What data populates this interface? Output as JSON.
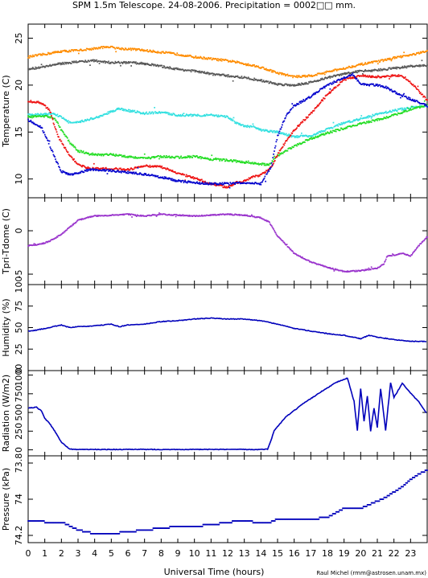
{
  "title": "SPM 1.5m Telescope. 24-08-2006. Precipitation = 0002□□ mm.",
  "credit": "Raul Michel  (rmm@astrosen.unam.mx)",
  "xlabel": "Universal Time (hours)",
  "x_ticks": [
    "0",
    "1",
    "2",
    "3",
    "4",
    "5",
    "6",
    "7",
    "8",
    "9",
    "10",
    "11",
    "12",
    "13",
    "14",
    "15",
    "16",
    "17",
    "18",
    "19",
    "20",
    "21",
    "22",
    "23"
  ],
  "colors": {
    "orange": "#ff8c00",
    "gray": "#555555",
    "cyan": "#33e0e0",
    "green": "#22dd22",
    "red": "#ee1111",
    "blue": "#0000cc",
    "purple": "#9933cc",
    "navy": "#0000bb"
  },
  "chart_data": [
    {
      "type": "scatter",
      "ylabel": "Temperature (C)",
      "ylim": [
        8,
        26.5
      ],
      "xlim": [
        0,
        24
      ],
      "yticks": [
        10,
        15,
        20,
        25
      ],
      "series": [
        {
          "color_key": "orange",
          "x": [
            0,
            1,
            2,
            3,
            4,
            4.8,
            5.5,
            6.5,
            8,
            9,
            10,
            11,
            12,
            13,
            14,
            15,
            16,
            17,
            18,
            19,
            20,
            21,
            22,
            23,
            24
          ],
          "y": [
            23.0,
            23.3,
            23.6,
            23.7,
            23.9,
            24.1,
            23.9,
            23.8,
            23.5,
            23.3,
            23.0,
            22.8,
            22.6,
            22.3,
            21.9,
            21.3,
            20.9,
            21.0,
            21.4,
            21.8,
            22.2,
            22.5,
            22.9,
            23.2,
            23.6
          ]
        },
        {
          "color_key": "gray",
          "x": [
            0,
            1,
            2,
            3,
            4,
            5,
            6,
            7,
            8,
            9,
            10,
            11,
            12,
            13,
            14,
            15,
            16,
            17,
            18,
            19,
            20,
            21,
            22,
            23,
            24
          ],
          "y": [
            21.7,
            22.0,
            22.3,
            22.5,
            22.6,
            22.4,
            22.4,
            22.3,
            22.0,
            21.7,
            21.5,
            21.2,
            21.0,
            20.8,
            20.5,
            20.1,
            20.0,
            20.3,
            20.8,
            21.2,
            21.5,
            21.6,
            21.8,
            22.0,
            22.1
          ]
        },
        {
          "color_key": "cyan",
          "x": [
            0,
            1,
            1.5,
            2,
            2.5,
            3,
            3.5,
            4,
            4.5,
            5,
            5.5,
            6,
            7,
            8,
            9,
            10,
            11,
            12,
            12.5,
            13,
            13.5,
            14,
            15,
            16,
            17,
            18,
            19,
            20,
            21,
            22,
            23,
            24
          ],
          "y": [
            16.8,
            16.9,
            17.0,
            16.6,
            16.0,
            16.0,
            16.3,
            16.5,
            16.8,
            17.2,
            17.5,
            17.3,
            17.0,
            17.1,
            16.8,
            16.8,
            16.8,
            16.6,
            16.0,
            15.6,
            15.6,
            15.2,
            15.0,
            14.5,
            14.6,
            15.3,
            16.0,
            16.4,
            16.9,
            17.3,
            17.6,
            17.8
          ]
        },
        {
          "color_key": "green",
          "x": [
            0,
            1,
            1.6,
            2,
            2.5,
            3,
            4,
            5,
            6,
            7,
            8,
            9,
            10,
            11,
            12,
            13,
            14,
            14.5,
            15,
            16,
            17,
            18,
            19,
            20,
            21,
            22,
            23,
            24
          ],
          "y": [
            16.6,
            16.7,
            16.5,
            15.2,
            13.9,
            13.0,
            12.6,
            12.6,
            12.4,
            12.2,
            12.4,
            12.3,
            12.4,
            12.1,
            12.0,
            11.8,
            11.6,
            11.5,
            12.5,
            13.5,
            14.3,
            14.9,
            15.4,
            15.9,
            16.3,
            16.8,
            17.4,
            17.9
          ]
        },
        {
          "color_key": "red",
          "x": [
            0,
            0.8,
            1.3,
            1.8,
            2.5,
            3,
            3.5,
            4,
            5,
            6,
            7,
            8,
            9,
            10,
            11,
            12,
            12.5,
            13,
            13.5,
            14,
            14.6,
            15,
            15.5,
            16,
            17,
            18,
            19,
            20,
            21,
            21.5,
            22,
            22.5,
            23,
            24
          ],
          "y": [
            18.3,
            18.1,
            17.3,
            14.5,
            12.5,
            11.6,
            11.2,
            11.1,
            11.1,
            11.0,
            11.4,
            11.3,
            10.6,
            10.1,
            9.5,
            9.1,
            9.6,
            9.8,
            10.2,
            10.4,
            11.2,
            12.6,
            14.0,
            15.2,
            17.0,
            19.0,
            20.6,
            21.0,
            20.9,
            20.9,
            21.0,
            21.0,
            20.3,
            18.4
          ]
        },
        {
          "color_key": "blue",
          "x": [
            0,
            0.8,
            1.2,
            1.6,
            2,
            2.5,
            3,
            3.5,
            4,
            5,
            6,
            7,
            8,
            9,
            10,
            11,
            12,
            13,
            14,
            14.6,
            15,
            15.5,
            16,
            17,
            18,
            19,
            19.5,
            20,
            21,
            21.5,
            22,
            23,
            24
          ],
          "y": [
            16.3,
            15.5,
            14.0,
            12.3,
            10.8,
            10.5,
            10.6,
            10.9,
            11.0,
            10.9,
            10.7,
            10.5,
            10.2,
            9.8,
            9.6,
            9.5,
            9.5,
            9.6,
            9.5,
            11.3,
            14.6,
            16.7,
            17.8,
            18.8,
            20.0,
            20.8,
            21.2,
            20.1,
            20.0,
            19.8,
            19.3,
            18.5,
            17.8
          ]
        }
      ]
    },
    {
      "type": "scatter",
      "ylabel": "Tpri-Tdome (C)",
      "ylim": [
        -6.2,
        3.8
      ],
      "xlim": [
        0,
        24
      ],
      "yticks": [
        -5,
        0
      ],
      "series": [
        {
          "color_key": "purple",
          "x": [
            0,
            0.5,
            1,
            1.5,
            2,
            2.5,
            3,
            3.5,
            4,
            5,
            6,
            7,
            8,
            9,
            10,
            11,
            12,
            13,
            14,
            14.5,
            15,
            15.5,
            16,
            17,
            18,
            19,
            20,
            21,
            21.4,
            21.6,
            22,
            22.5,
            23,
            23.5,
            24
          ],
          "y": [
            -1.7,
            -1.6,
            -1.4,
            -1.0,
            -0.4,
            0.4,
            1.2,
            1.5,
            1.7,
            1.8,
            1.9,
            1.7,
            1.9,
            1.8,
            1.7,
            1.8,
            1.9,
            1.8,
            1.5,
            1.0,
            -0.6,
            -1.6,
            -2.6,
            -3.6,
            -4.2,
            -4.7,
            -4.6,
            -4.3,
            -3.8,
            -2.9,
            -2.8,
            -2.6,
            -2.9,
            -1.7,
            -0.7
          ]
        }
      ]
    },
    {
      "type": "line",
      "ylabel": "Humidity (%)",
      "ylim": [
        0,
        100
      ],
      "xlim": [
        0,
        24
      ],
      "yticks": [
        0,
        25,
        50,
        75,
        100
      ],
      "series": [
        {
          "color_key": "navy",
          "x": [
            0,
            0.5,
            1,
            1.5,
            2,
            2.5,
            3,
            4,
            5,
            5.5,
            6,
            7,
            8,
            9,
            10,
            11,
            12,
            13,
            14,
            15,
            16,
            17,
            18,
            19,
            19.5,
            20,
            20.5,
            21,
            22,
            23,
            24
          ],
          "y": [
            46,
            47,
            49,
            51,
            53,
            50,
            51,
            52,
            54,
            51,
            53,
            54,
            57,
            58,
            60,
            61,
            60,
            60,
            58,
            54,
            49,
            46,
            43,
            41,
            39,
            37,
            41,
            39,
            36,
            34,
            34
          ]
        }
      ]
    },
    {
      "type": "line",
      "ylabel": "Radiation (W/m2)",
      "ylim": [
        -80,
        1060
      ],
      "xlim": [
        0,
        24
      ],
      "yticks": [
        0,
        250,
        500,
        750,
        1000
      ],
      "series": [
        {
          "color_key": "navy",
          "x": [
            0,
            0.5,
            0.8,
            1,
            1.3,
            1.6,
            2,
            2.5,
            3,
            5,
            8,
            11,
            13,
            14,
            14.4,
            14.6,
            14.8,
            15.5,
            16.5,
            17.5,
            18.5,
            19.2,
            19.6,
            19.8,
            20,
            20.2,
            20.4,
            20.6,
            20.8,
            21,
            21.2,
            21.5,
            21.8,
            22,
            22.5,
            23,
            23.5,
            24
          ],
          "y": [
            560,
            570,
            520,
            420,
            350,
            250,
            100,
            10,
            5,
            5,
            5,
            5,
            5,
            5,
            10,
            120,
            260,
            440,
            610,
            760,
            900,
            960,
            650,
            260,
            820,
            380,
            720,
            250,
            560,
            300,
            820,
            260,
            900,
            700,
            890,
            760,
            640,
            480
          ]
        }
      ]
    },
    {
      "type": "scatter",
      "ylabel": "Pressure (kPa)",
      "ylim": [
        73.76,
        74.24
      ],
      "ylim_inverted": true,
      "xlim": [
        0,
        24
      ],
      "yticks": [
        74.2,
        74,
        73.8
      ],
      "ytick_labels": [
        "74.2",
        "74",
        "73.8"
      ],
      "series": [
        {
          "color_key": "navy",
          "x": [
            0,
            1,
            2,
            3,
            3.5,
            4,
            5,
            6,
            7,
            8,
            9,
            10,
            11,
            12,
            12.5,
            13,
            14,
            14.5,
            15,
            16,
            17,
            18,
            19,
            20,
            20.5,
            21,
            21.5,
            22,
            22.5,
            23,
            23.5,
            24
          ],
          "y": [
            74.12,
            74.125,
            74.125,
            74.17,
            74.18,
            74.19,
            74.19,
            74.18,
            74.17,
            74.16,
            74.15,
            74.15,
            74.14,
            74.13,
            74.12,
            74.12,
            74.13,
            74.13,
            74.11,
            74.11,
            74.11,
            74.1,
            74.05,
            74.05,
            74.03,
            74.01,
            73.99,
            73.96,
            73.93,
            73.89,
            73.86,
            73.84
          ]
        }
      ]
    }
  ]
}
